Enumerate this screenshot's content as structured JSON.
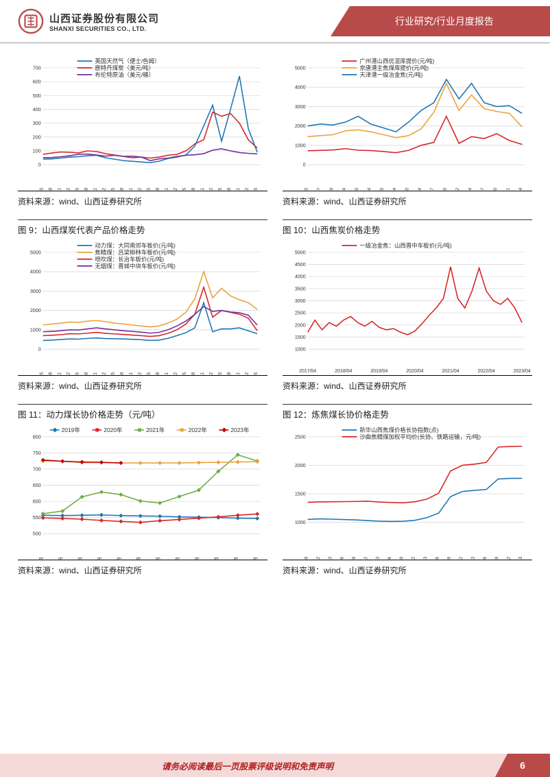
{
  "header": {
    "company_zh": "山西证券股份有限公司",
    "company_en": "SHANXI SECURITIES CO., LTD.",
    "category": "行业研究/行业月度报告",
    "logo_color": "#b84a4a"
  },
  "footer": {
    "disclaimer": "请务必阅读最后一页股票评级说明和免责声明",
    "page": "6",
    "bg": "#f4d9d9",
    "accent": "#b84a4a",
    "text_color": "#b02020"
  },
  "common": {
    "source": "资料来源：wind、山西证券研究所",
    "colors": {
      "red": "#d62728",
      "blue": "#1f77b4",
      "yellow": "#e8a33d",
      "purple": "#7030a0",
      "green": "#70ad47",
      "grid": "#d9d9d9",
      "axis": "#333333"
    }
  },
  "charts": [
    {
      "id": "c7",
      "title": "",
      "legend": [
        {
          "label": "英国天然气（便士/色姆）",
          "color": "#1f77b4"
        },
        {
          "label": "鹿特丹煤炭（美元/吨）",
          "color": "#d62728"
        },
        {
          "label": "布伦特原油（美元/桶）",
          "color": "#7030a0"
        }
      ],
      "ylim": [
        0,
        700
      ],
      "yticks": [
        0,
        100,
        200,
        300,
        400,
        500,
        600,
        700
      ],
      "xlabels": [
        "2017-05",
        "2017-08",
        "2017-11",
        "2018-02",
        "2018-05",
        "2018-08",
        "2018-11",
        "2019-02",
        "2019-05",
        "2019-08",
        "2019-11",
        "2020-02",
        "2020-05",
        "2020-08",
        "2020-11",
        "2021-02",
        "2021-05",
        "2021-08",
        "2021-11",
        "2022-02",
        "2022-05",
        "2022-08",
        "2022-11",
        "2023-02",
        "2023-05"
      ],
      "series": [
        {
          "color": "#1f77b4",
          "data": [
            40,
            42,
            48,
            55,
            58,
            65,
            68,
            50,
            40,
            30,
            25,
            20,
            15,
            25,
            45,
            55,
            70,
            135,
            280,
            430,
            170,
            400,
            640,
            260,
            90
          ]
        },
        {
          "color": "#d62728",
          "data": [
            75,
            85,
            92,
            90,
            85,
            100,
            95,
            80,
            70,
            60,
            50,
            55,
            48,
            55,
            68,
            75,
            100,
            150,
            180,
            380,
            350,
            370,
            300,
            180,
            120
          ]
        },
        {
          "color": "#7030a0",
          "data": [
            50,
            52,
            58,
            65,
            75,
            77,
            70,
            62,
            68,
            60,
            62,
            55,
            30,
            42,
            48,
            60,
            68,
            72,
            80,
            105,
            115,
            100,
            88,
            82,
            78
          ]
        }
      ]
    },
    {
      "id": "c8",
      "title": "",
      "legend": [
        {
          "label": "广州港山西优混库提价(元/吨)",
          "color": "#d62728"
        },
        {
          "label": "京唐港主焦煤库提价(元/吨)",
          "color": "#e8a33d"
        },
        {
          "label": "天津港一级冶金焦(元/吨)",
          "color": "#1f77b4"
        }
      ],
      "ylim": [
        0,
        5000
      ],
      "yticks": [
        0,
        1000,
        2000,
        3000,
        4000,
        5000
      ],
      "xlabels": [
        "2017-05",
        "2017-07",
        "2017-09",
        "2018-04",
        "2018-10",
        "2019-04",
        "2019-10",
        "2020-04",
        "2020-10",
        "2021-04",
        "2021-07",
        "2021-10",
        "2022-02",
        "2022-04",
        "2022-07",
        "2022-10",
        "2023-01",
        "2023-04"
      ],
      "series": [
        {
          "color": "#1f77b4",
          "data": [
            2000,
            2100,
            2050,
            2200,
            2500,
            2100,
            1900,
            1700,
            2200,
            2800,
            3200,
            4400,
            3400,
            4200,
            3200,
            3000,
            3050,
            2650
          ]
        },
        {
          "color": "#e8a33d",
          "data": [
            1450,
            1500,
            1550,
            1750,
            1800,
            1700,
            1550,
            1400,
            1500,
            1850,
            2700,
            4200,
            2800,
            3600,
            2900,
            2750,
            2650,
            1950
          ]
        },
        {
          "color": "#d62728",
          "data": [
            720,
            740,
            760,
            830,
            750,
            730,
            680,
            620,
            740,
            1000,
            1150,
            2500,
            1100,
            1450,
            1350,
            1600,
            1250,
            1050
          ]
        }
      ]
    },
    {
      "id": "c9",
      "title": "图 9：山西煤炭代表产品价格走势",
      "legend": [
        {
          "label": "动力煤：大同南郊车板价(元/吨)",
          "color": "#1f77b4"
        },
        {
          "label": "焦精煤：吕梁柳林车板价(元/吨)",
          "color": "#e8a33d"
        },
        {
          "label": "喷吹煤：长治车板价(元/吨)",
          "color": "#d62728"
        },
        {
          "label": "无烟煤：晋城中块车板价(元/吨)",
          "color": "#7030a0"
        }
      ],
      "ylim": [
        0,
        5000
      ],
      "yticks": [
        0,
        1000,
        2000,
        3000,
        4000,
        5000
      ],
      "xlabels": [
        "2017-05",
        "2017-08",
        "2017-11",
        "2018-02",
        "2018-05",
        "2018-08",
        "2018-11",
        "2019-02",
        "2019-05",
        "2019-08",
        "2019-11",
        "2020-02",
        "2020-05",
        "2020-08",
        "2020-11",
        "2021-02",
        "2021-05",
        "2021-08",
        "2021-11",
        "2022-02",
        "2022-05",
        "2022-08",
        "2022-11",
        "2023-02",
        "2023-05"
      ],
      "series": [
        {
          "color": "#1f77b4",
          "data": [
            450,
            470,
            500,
            530,
            520,
            560,
            580,
            550,
            540,
            530,
            510,
            490,
            450,
            470,
            560,
            700,
            850,
            1100,
            2400,
            900,
            1050,
            1050,
            1100,
            950,
            800
          ]
        },
        {
          "color": "#e8a33d",
          "data": [
            1250,
            1300,
            1350,
            1400,
            1380,
            1450,
            1480,
            1420,
            1350,
            1300,
            1250,
            1200,
            1150,
            1200,
            1350,
            1550,
            1900,
            2600,
            4000,
            2650,
            3150,
            2750,
            2550,
            2400,
            2050
          ]
        },
        {
          "color": "#d62728",
          "data": [
            700,
            720,
            750,
            800,
            790,
            830,
            870,
            820,
            790,
            760,
            730,
            700,
            660,
            700,
            820,
            1000,
            1300,
            1800,
            3200,
            1650,
            2000,
            1900,
            1800,
            1600,
            950
          ]
        },
        {
          "color": "#7030a0",
          "data": [
            900,
            920,
            950,
            1000,
            990,
            1050,
            1100,
            1050,
            1000,
            950,
            920,
            880,
            830,
            870,
            1000,
            1200,
            1450,
            1800,
            2200,
            1950,
            2000,
            1920,
            1880,
            1750,
            1250
          ]
        }
      ]
    },
    {
      "id": "c10",
      "title": "图 10：山西焦炭价格走势",
      "legend": [
        {
          "label": "一级冶金焦：山西晋中车板价(元/吨)",
          "color": "#d62728"
        }
      ],
      "ylim": [
        1000,
        5000
      ],
      "yticks": [
        1000,
        1500,
        2000,
        2500,
        3000,
        3500,
        4000,
        4500,
        5000
      ],
      "xlabels": [
        "2017/04",
        "2018/04",
        "2019/04",
        "2020/04",
        "2021/04",
        "2022/04",
        "2023/04"
      ],
      "series": [
        {
          "color": "#d62728",
          "data_dense": [
            1700,
            2200,
            1800,
            2100,
            1950,
            2200,
            2350,
            2100,
            1950,
            2150,
            1900,
            1800,
            1850,
            1700,
            1600,
            1750,
            2050,
            2400,
            2700,
            3100,
            4400,
            3100,
            2700,
            3400,
            4350,
            3400,
            3000,
            2850,
            3100,
            2700,
            2100
          ]
        }
      ]
    },
    {
      "id": "c11",
      "title": "图 11：动力煤长协价格走势（元/吨）",
      "legend": [
        {
          "label": "2019年",
          "color": "#1f77b4",
          "marker": "diamond"
        },
        {
          "label": "2020年",
          "color": "#d62728",
          "marker": "square"
        },
        {
          "label": "2021年",
          "color": "#70ad47",
          "marker": "triangle"
        },
        {
          "label": "2022年",
          "color": "#e8a33d",
          "marker": "x"
        },
        {
          "label": "2023年",
          "color": "#c00000",
          "marker": "diamond-fill"
        }
      ],
      "ylim": [
        500,
        800
      ],
      "yticks": [
        500,
        550,
        600,
        650,
        700,
        750,
        800
      ],
      "xlabels": [
        "01月",
        "02月",
        "03月",
        "04月",
        "05月",
        "06月",
        "07月",
        "08月",
        "09月",
        "10月",
        "11月",
        "12月"
      ],
      "series": [
        {
          "color": "#1f77b4",
          "data": [
            557,
            556,
            557,
            558,
            556,
            555,
            554,
            552,
            551,
            550,
            548,
            547
          ]
        },
        {
          "color": "#d62728",
          "data": [
            549,
            547,
            545,
            541,
            538,
            535,
            540,
            544,
            548,
            552,
            557,
            561
          ]
        },
        {
          "color": "#70ad47",
          "data": [
            562,
            570,
            614,
            629,
            621,
            601,
            595,
            615,
            635,
            693,
            744,
            725
          ]
        },
        {
          "color": "#e8a33d",
          "data": [
            725,
            725,
            720,
            720,
            719,
            719,
            719,
            719,
            720,
            721,
            722,
            723
          ]
        },
        {
          "color": "#c00000",
          "data": [
            728,
            724,
            722,
            721,
            719,
            null,
            null,
            null,
            null,
            null,
            null,
            null
          ]
        }
      ]
    },
    {
      "id": "c12",
      "title": "图 12：炼焦煤长协价格走势",
      "legend": [
        {
          "label": "新华山西焦煤价格长协指数(点)",
          "color": "#1f77b4"
        },
        {
          "label": "沙曲焦精煤加权平均价(长协、铁路运输，元/吨)",
          "color": "#d62728"
        }
      ],
      "ylim": [
        800,
        2500
      ],
      "yticks": [
        1000,
        1500,
        2000,
        2500
      ],
      "xlabels": [
        "2018/09",
        "2018/12",
        "2019/03",
        "2019/06",
        "2019/09",
        "2019/12",
        "2020/03",
        "2020/06",
        "2020/09",
        "2020/12",
        "2021/03",
        "2021/06",
        "2021/09",
        "2021/12",
        "2022/03",
        "2022/06",
        "2022/09",
        "2022/12",
        "2023/03"
      ],
      "series": [
        {
          "color": "#1f77b4",
          "data": [
            1050,
            1060,
            1055,
            1048,
            1042,
            1030,
            1020,
            1015,
            1018,
            1035,
            1080,
            1160,
            1450,
            1540,
            1560,
            1575,
            1760,
            1770,
            1772
          ]
        },
        {
          "color": "#d62728",
          "data": [
            1350,
            1358,
            1360,
            1362,
            1365,
            1370,
            1355,
            1348,
            1342,
            1360,
            1405,
            1510,
            1900,
            2000,
            2020,
            2050,
            2320,
            2330,
            2335
          ]
        }
      ]
    }
  ]
}
